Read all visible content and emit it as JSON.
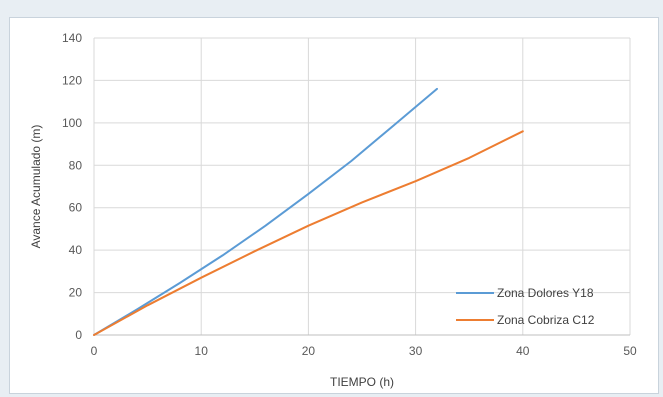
{
  "chart_data": {
    "type": "line",
    "title": "",
    "xlabel": "TIEMPO (h)",
    "ylabel": "Avance Acumulado (m)",
    "xlim": [
      0,
      50
    ],
    "ylim": [
      0,
      140
    ],
    "xticks": [
      0,
      10,
      20,
      30,
      40,
      50
    ],
    "yticks": [
      0,
      20,
      40,
      60,
      80,
      100,
      120,
      140
    ],
    "grid": true,
    "legend_position": "bottom-right",
    "series": [
      {
        "name": "Zona Dolores Y18",
        "color": "#5b9bd5",
        "x": [
          0,
          4,
          8,
          12,
          16,
          20,
          24,
          28,
          32
        ],
        "y": [
          0,
          12,
          24.5,
          37.5,
          51.5,
          66.5,
          82,
          99,
          116
        ]
      },
      {
        "name": "Zona Cobriza C12",
        "color": "#ed7d31",
        "x": [
          0,
          5,
          10,
          15,
          20,
          25,
          30,
          35,
          40
        ],
        "y": [
          0,
          14,
          27,
          39.5,
          51.5,
          62.5,
          72.5,
          83.5,
          96
        ]
      }
    ]
  }
}
